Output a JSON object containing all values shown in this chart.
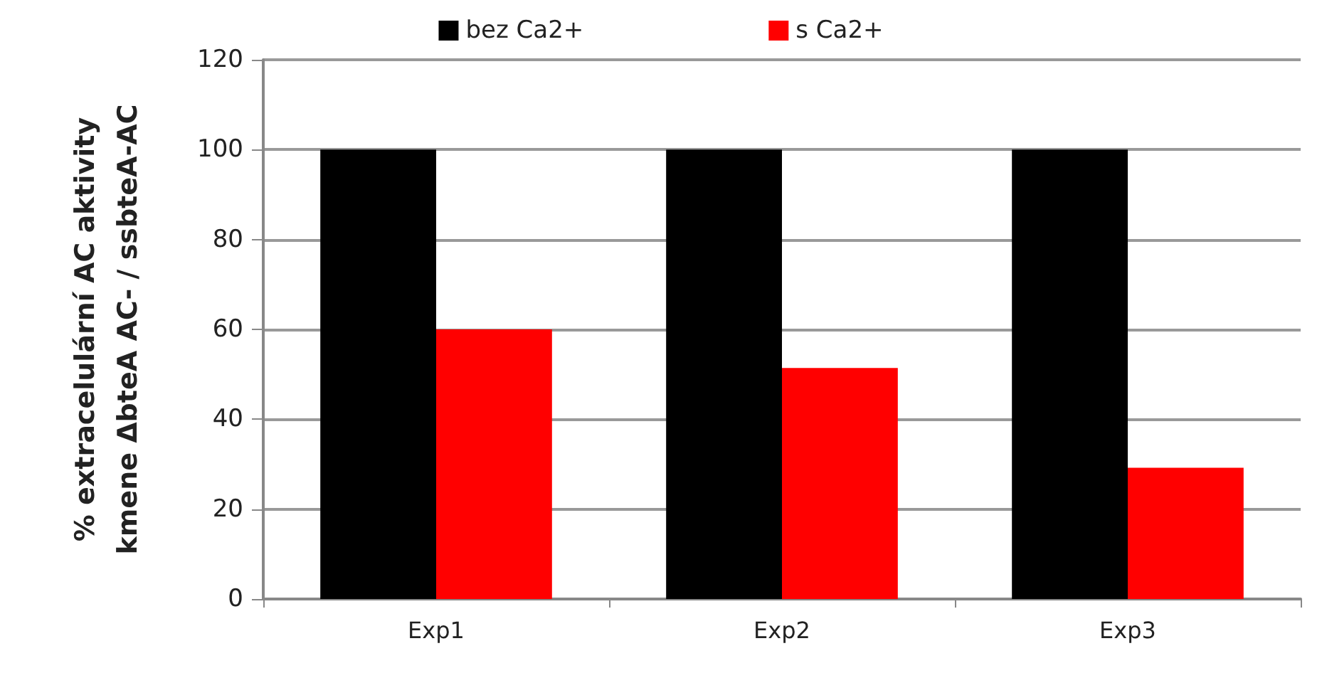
{
  "chart_data": {
    "type": "bar",
    "ylabel": "% extracelulární AC aktivity\nkmene ΔbteA AC- / ssbteA-AC",
    "categories": [
      "Exp1",
      "Exp2",
      "Exp3"
    ],
    "series": [
      {
        "name": "bez Ca2+",
        "color": "#000000",
        "values": [
          100,
          100,
          100
        ]
      },
      {
        "name": "s Ca2+",
        "color": "#ff0000",
        "values": [
          60,
          51.4,
          29.2
        ]
      }
    ],
    "ylim": [
      0,
      120
    ],
    "yticks": [
      0,
      20,
      40,
      60,
      80,
      100,
      120
    ],
    "grid": "y",
    "legend": "top"
  }
}
